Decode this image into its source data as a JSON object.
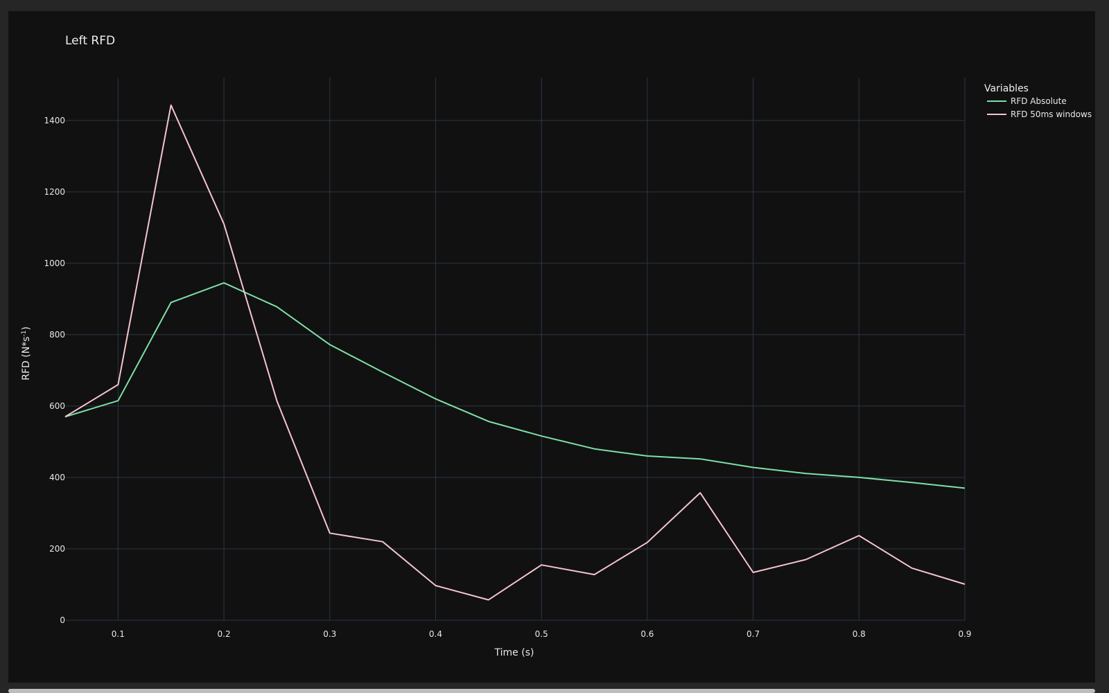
{
  "chart_data": {
    "type": "line",
    "title": "Left RFD",
    "xlabel": "Time (s)",
    "ylabel_main": "RFD (N*s",
    "ylabel_sup": "-1",
    "ylabel_close": ")",
    "xlim": [
      0.05,
      0.9
    ],
    "ylim": [
      0,
      1520
    ],
    "xticks": [
      0.1,
      0.2,
      0.3,
      0.4,
      0.5,
      0.6,
      0.7,
      0.8,
      0.9
    ],
    "xtick_labels": [
      "0.1",
      "0.2",
      "0.3",
      "0.4",
      "0.5",
      "0.6",
      "0.7",
      "0.8",
      "0.9"
    ],
    "yticks": [
      0,
      200,
      400,
      600,
      800,
      1000,
      1200,
      1400
    ],
    "ytick_labels": [
      "0",
      "200",
      "400",
      "600",
      "800",
      "1000",
      "1200",
      "1400"
    ],
    "grid": true,
    "legend": {
      "title": "Variables",
      "position": "top-right"
    },
    "x": [
      0.05,
      0.1,
      0.15,
      0.2,
      0.25,
      0.3,
      0.35,
      0.4,
      0.45,
      0.5,
      0.55,
      0.6,
      0.65,
      0.7,
      0.75,
      0.8,
      0.85,
      0.9
    ],
    "series": [
      {
        "name": "RFD Absolute",
        "color": "#7fe0a8",
        "values": [
          570,
          615,
          890,
          945,
          878,
          772,
          695,
          620,
          557,
          516,
          480,
          460,
          452,
          428,
          411,
          400,
          386,
          370
        ]
      },
      {
        "name": "RFD 50ms windows",
        "color": "#f7c4d0",
        "values": [
          570,
          660,
          1443,
          1110,
          615,
          244,
          220,
          97,
          57,
          155,
          128,
          218,
          357,
          134,
          170,
          237,
          146,
          101
        ]
      }
    ]
  },
  "colors": {
    "background": "#111111",
    "grid": "#2c3646",
    "text": "#e8e8e8"
  }
}
